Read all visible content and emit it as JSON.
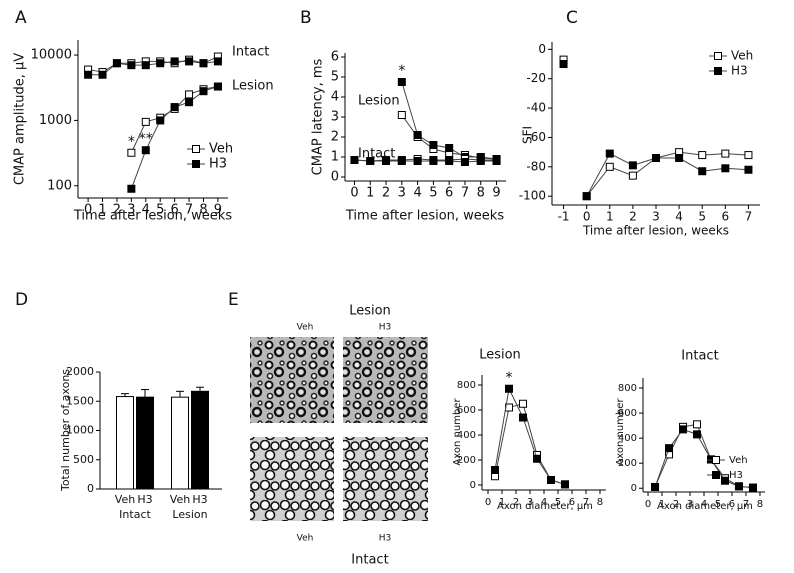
{
  "panels": [
    "A",
    "B",
    "C",
    "D",
    "E"
  ],
  "micrographs": {
    "top_title": "Lesion",
    "top_columns": [
      "Veh",
      "H3"
    ],
    "bottom_columns": [
      "Veh",
      "H3"
    ],
    "bottom_title": "Intact"
  },
  "chart_data": [
    {
      "type": "line",
      "y_scale": "log",
      "xlabel": "Time after lesion, weeks",
      "ylabel": "CMAP amplitude, μV",
      "xlim": [
        -0.7,
        9.7
      ],
      "ylim": [
        65,
        17000
      ],
      "xticks": [
        0,
        1,
        2,
        3,
        4,
        5,
        6,
        7,
        8,
        9
      ],
      "yticks": [
        100,
        1000,
        10000
      ],
      "legend": [
        {
          "name": "Veh",
          "fill": "#ffffff"
        },
        {
          "name": "H3",
          "fill": "#000000"
        }
      ],
      "legend_position": "lower right",
      "groups": [
        {
          "label": "Intact",
          "x": [
            0,
            1,
            2,
            3,
            4,
            5,
            6,
            7,
            8,
            9
          ],
          "series": [
            {
              "fill": "#ffffff",
              "values": [
                6000,
                5500,
                7500,
                7500,
                8000,
                8000,
                7500,
                8500,
                7500,
                9500
              ]
            },
            {
              "fill": "#000000",
              "values": [
                5000,
                5000,
                7500,
                7000,
                7000,
                7500,
                8000,
                8000,
                7500,
                8000
              ]
            }
          ]
        },
        {
          "label": "Lesion",
          "x": [
            3,
            4,
            5,
            6,
            7,
            8,
            9
          ],
          "series": [
            {
              "fill": "#ffffff",
              "values": [
                320,
                950,
                1100,
                1500,
                2500,
                3000,
                3300
              ]
            },
            {
              "fill": "#000000",
              "values": [
                90,
                350,
                1000,
                1600,
                1900,
                2800,
                3300
              ]
            }
          ],
          "significance": [
            {
              "series": 0,
              "x": 3,
              "label": "*"
            },
            {
              "series": 1,
              "x": 4,
              "label": "**"
            }
          ]
        }
      ]
    },
    {
      "type": "line",
      "y_scale": "linear",
      "xlabel": "Time after lesion, weeks",
      "ylabel": "CMAP latency, ms",
      "xlim": [
        -0.6,
        9.6
      ],
      "ylim": [
        -0.2,
        6.2
      ],
      "xticks": [
        0,
        1,
        2,
        3,
        4,
        5,
        6,
        7,
        8,
        9
      ],
      "yticks": [
        0,
        1,
        2,
        3,
        4,
        5,
        6
      ],
      "groups": [
        {
          "label": "Lesion",
          "x": [
            3,
            4,
            5,
            6,
            7,
            8,
            9
          ],
          "series": [
            {
              "fill": "#ffffff",
              "values": [
                3.1,
                2.0,
                1.4,
                1.2,
                1.1,
                0.95,
                0.9
              ]
            },
            {
              "fill": "#000000",
              "values": [
                4.75,
                2.1,
                1.6,
                1.45,
                1.0,
                1.0,
                0.9
              ]
            }
          ],
          "significance": [
            {
              "series": 1,
              "x": 3,
              "label": "*"
            }
          ]
        },
        {
          "label": "Intact",
          "x": [
            0,
            1,
            2,
            3,
            4,
            5,
            6,
            7,
            8,
            9
          ],
          "series": [
            {
              "fill": "#ffffff",
              "values": [
                0.85,
                0.8,
                0.85,
                0.85,
                0.9,
                0.85,
                0.85,
                0.9,
                0.85,
                0.85
              ]
            },
            {
              "fill": "#000000",
              "values": [
                0.85,
                0.8,
                0.8,
                0.8,
                0.8,
                0.8,
                0.8,
                0.75,
                0.8,
                0.8
              ]
            }
          ]
        }
      ]
    },
    {
      "type": "line",
      "y_scale": "linear",
      "xlabel": "Time after lesion, weeks",
      "ylabel": "SFI",
      "xlim": [
        -1.5,
        7.5
      ],
      "ylim": [
        -106,
        5
      ],
      "xticks": [
        -1,
        0,
        1,
        2,
        3,
        4,
        5,
        6,
        7
      ],
      "yticks": [
        0,
        -20,
        -40,
        -60,
        -80,
        -100
      ],
      "connect_from_x": 0,
      "legend": [
        {
          "name": "Veh",
          "fill": "#ffffff"
        },
        {
          "name": "H3",
          "fill": "#000000"
        }
      ],
      "legend_position": "upper right",
      "groups": [
        {
          "x": [
            -1,
            0,
            1,
            2,
            3,
            4,
            5,
            6,
            7
          ],
          "series": [
            {
              "fill": "#ffffff",
              "values": [
                -7,
                -100,
                -80,
                -86,
                -74,
                -70,
                -72,
                -71,
                -72
              ]
            },
            {
              "fill": "#000000",
              "values": [
                -10,
                -100,
                -71,
                -79,
                -74,
                -74,
                -83,
                -81,
                -82
              ]
            }
          ]
        }
      ]
    },
    {
      "type": "bar",
      "ylabel": "Total number of axons",
      "categories": [
        "Veh",
        "H3",
        "Veh",
        "H3"
      ],
      "group_labels": [
        "Intact",
        "Lesion"
      ],
      "values": [
        1580,
        1570,
        1570,
        1670
      ],
      "errors": [
        50,
        130,
        100,
        70
      ],
      "colors": [
        "#ffffff",
        "#000000",
        "#ffffff",
        "#000000"
      ],
      "ylim": [
        0,
        2000
      ],
      "yticks": [
        0,
        500,
        1000,
        1500,
        2000
      ]
    },
    {
      "type": "line",
      "y_scale": "linear",
      "title": "Lesion",
      "xlabel": "Axon diameter, μm",
      "ylabel": "Axon number",
      "xlim": [
        -0.43,
        8.43
      ],
      "ylim": [
        -40,
        880
      ],
      "xticks": [
        0,
        1,
        2,
        3,
        4,
        5,
        6,
        7,
        8
      ],
      "yticks": [
        0,
        200,
        400,
        600,
        800
      ],
      "groups": [
        {
          "x": [
            0.5,
            1.5,
            2.5,
            3.5,
            4.5,
            5.5
          ],
          "series": [
            {
              "fill": "#ffffff",
              "values": [
                70,
                620,
                650,
                240,
                40,
                5
              ]
            },
            {
              "fill": "#000000",
              "values": [
                120,
                770,
                540,
                210,
                40,
                5
              ]
            }
          ],
          "significance": [
            {
              "series": 1,
              "x": 1.5,
              "label": "*"
            }
          ]
        }
      ]
    },
    {
      "type": "line",
      "y_scale": "linear",
      "title": "Intact",
      "xlabel": "Axon diameter, μm",
      "ylabel": "Axon number",
      "xlim": [
        -0.36,
        8.36
      ],
      "ylim": [
        -30,
        880
      ],
      "xticks": [
        0,
        1,
        2,
        3,
        4,
        5,
        6,
        7,
        8
      ],
      "yticks": [
        0,
        200,
        400,
        600,
        800
      ],
      "legend": [
        {
          "name": "Veh",
          "fill": "#ffffff"
        },
        {
          "name": "H3",
          "fill": "#000000"
        }
      ],
      "legend_position": "right",
      "groups": [
        {
          "x": [
            0.5,
            1.5,
            2.5,
            3.5,
            4.5,
            5.5,
            6.5,
            7.5
          ],
          "series": [
            {
              "fill": "#ffffff",
              "values": [
                10,
                270,
                490,
                510,
                230,
                80,
                15,
                5
              ]
            },
            {
              "fill": "#000000",
              "values": [
                10,
                320,
                470,
                430,
                230,
                60,
                15,
                5
              ]
            }
          ]
        }
      ]
    }
  ]
}
